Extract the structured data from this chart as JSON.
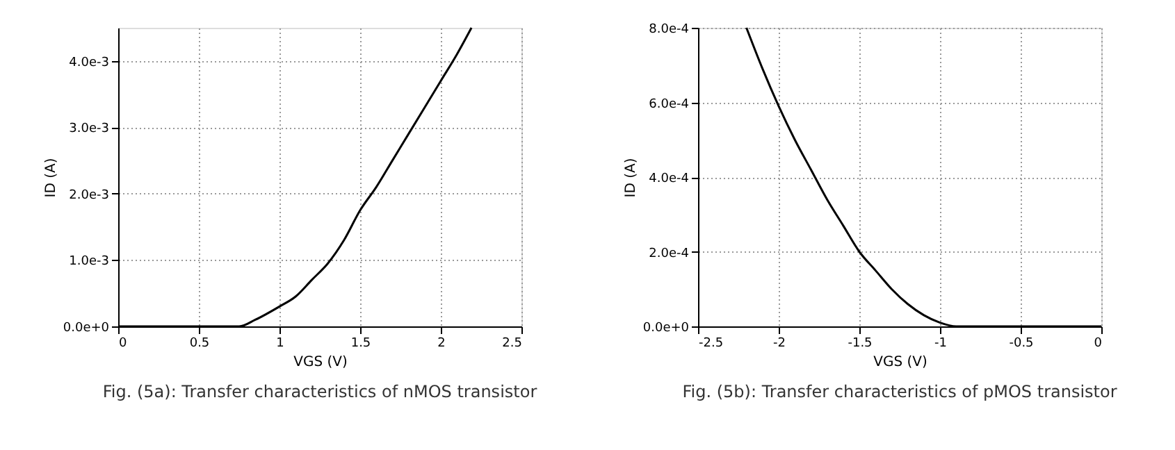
{
  "chart_data": [
    {
      "type": "line",
      "title": "Fig. (5a): Transfer characteristics of nMOS transistor",
      "xlabel": "VGS (V)",
      "ylabel": "ID (A)",
      "x": [
        0,
        0.65,
        0.75,
        0.85,
        1.0,
        1.1,
        1.2,
        1.3,
        1.4,
        1.5,
        1.6,
        1.7,
        1.8,
        1.9,
        2.0,
        2.1,
        2.19
      ],
      "series": [
        {
          "color": "#000000",
          "values": [
            0,
            0,
            0,
            0.0001,
            0.0003,
            0.00045,
            0.0007,
            0.00095,
            0.0013,
            0.00175,
            0.0021,
            0.0025,
            0.0029,
            0.0033,
            0.0037,
            0.0041,
            0.0045
          ]
        }
      ],
      "xlim": [
        0,
        2.5
      ],
      "xticks": [
        0,
        0.5,
        1,
        1.5,
        2,
        2.5
      ],
      "ylim": [
        0,
        0.0045
      ],
      "yticks": [
        {
          "value": 0,
          "label": "0.0e+0"
        },
        {
          "value": 0.001,
          "label": "1.0e-3"
        },
        {
          "value": 0.002,
          "label": "2.0e-3"
        },
        {
          "value": 0.003,
          "label": "3.0e-3"
        },
        {
          "value": 0.004,
          "label": "4.0e-3"
        }
      ],
      "grid": true,
      "marker": "none",
      "line_style": "solid"
    },
    {
      "type": "line",
      "title": "Fig. (5b): Transfer characteristics of pMOS transistor",
      "xlabel": "VGS (V)",
      "ylabel": "ID (A)",
      "x": [
        -2.2,
        -2.1,
        -2.0,
        -1.9,
        -1.8,
        -1.7,
        -1.6,
        -1.5,
        -1.4,
        -1.3,
        -1.2,
        -1.1,
        -1.0,
        -0.9,
        -0.8,
        0
      ],
      "series": [
        {
          "color": "#000000",
          "values": [
            0.0008,
            0.00069,
            0.00059,
            0.0005,
            0.00042,
            0.00034,
            0.00027,
            0.0002,
            0.00015,
            0.0001,
            6e-05,
            3e-05,
            1e-05,
            0,
            0,
            0
          ]
        }
      ],
      "xlim": [
        -2.5,
        0
      ],
      "xticks": [
        -2.5,
        -2,
        -1.5,
        -1,
        -0.5,
        0
      ],
      "ylim": [
        0,
        0.0008
      ],
      "yticks": [
        {
          "value": 0,
          "label": "0.0e+0"
        },
        {
          "value": 0.0002,
          "label": "2.0e-4"
        },
        {
          "value": 0.0004,
          "label": "4.0e-4"
        },
        {
          "value": 0.0006,
          "label": "6.0e-4"
        },
        {
          "value": 0.0008,
          "label": "8.0e-4"
        }
      ],
      "grid": true,
      "marker": "none",
      "line_style": "solid"
    }
  ]
}
